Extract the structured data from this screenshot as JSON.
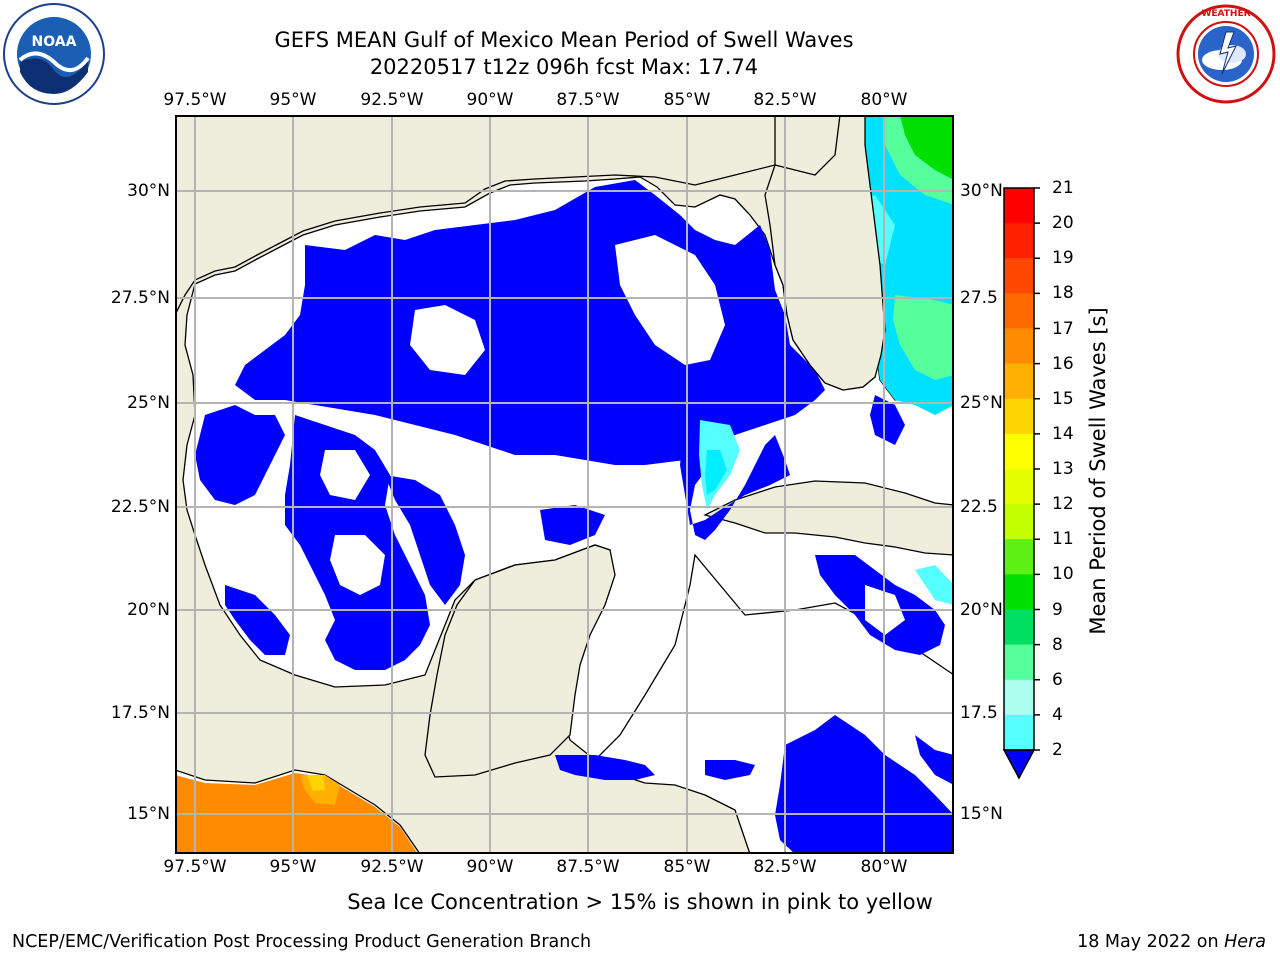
{
  "header": {
    "title_line1": "GEFS MEAN Gulf of Mexico Mean Period of Swell Waves",
    "title_line2": "20220517 t12z 096h fcst   Max: 17.74"
  },
  "logos": {
    "left_name": "NOAA",
    "left_ring_text": "NATIONAL OCEANIC AND ATMOSPHERIC ADMINISTRATION · U.S. DEPARTMENT OF COMMERCE",
    "right_ring_text": "NATIONAL WEATHER SERVICE"
  },
  "map": {
    "lon_labels": [
      "97.5°W",
      "95°W",
      "92.5°W",
      "90°W",
      "87.5°W",
      "85°W",
      "82.5°W",
      "80°W"
    ],
    "lat_labels_left": [
      "30°N",
      "27.5°N",
      "25°N",
      "22.5°N",
      "20°N",
      "17.5°N",
      "15°N"
    ],
    "lat_labels_right": [
      "30°N",
      "27.5",
      "25°N",
      "22.5",
      "20°N",
      "17.5",
      "15°N"
    ],
    "colors": {
      "land": "#efeedc",
      "ocean_low": "#0000ff",
      "grid": "#b4b4b4"
    }
  },
  "colorbar": {
    "label": "Mean Period of Swell Waves [s]",
    "ticks": [
      "21",
      "20",
      "19",
      "18",
      "17",
      "16",
      "15",
      "14",
      "13",
      "12",
      "11",
      "10",
      "9",
      "8",
      "6",
      "4",
      "2"
    ],
    "colors": [
      "#ff0000",
      "#ff2000",
      "#ff4800",
      "#ff6a00",
      "#ff8c00",
      "#ffb000",
      "#ffd500",
      "#ffff00",
      "#e6ff00",
      "#c4ff00",
      "#5cf014",
      "#00e000",
      "#00e060",
      "#55ff9c",
      "#aaffee",
      "#55ffff",
      "#00eeff",
      "#0099ff",
      "#0066ff"
    ]
  },
  "notes": {
    "sea_ice": "Sea Ice Concentration > 15% is shown in pink to yellow"
  },
  "footer": {
    "left": "NCEP/EMC/Verification Post Processing Product Generation Branch",
    "date": "18 May 2022 on ",
    "host": "Hera"
  }
}
